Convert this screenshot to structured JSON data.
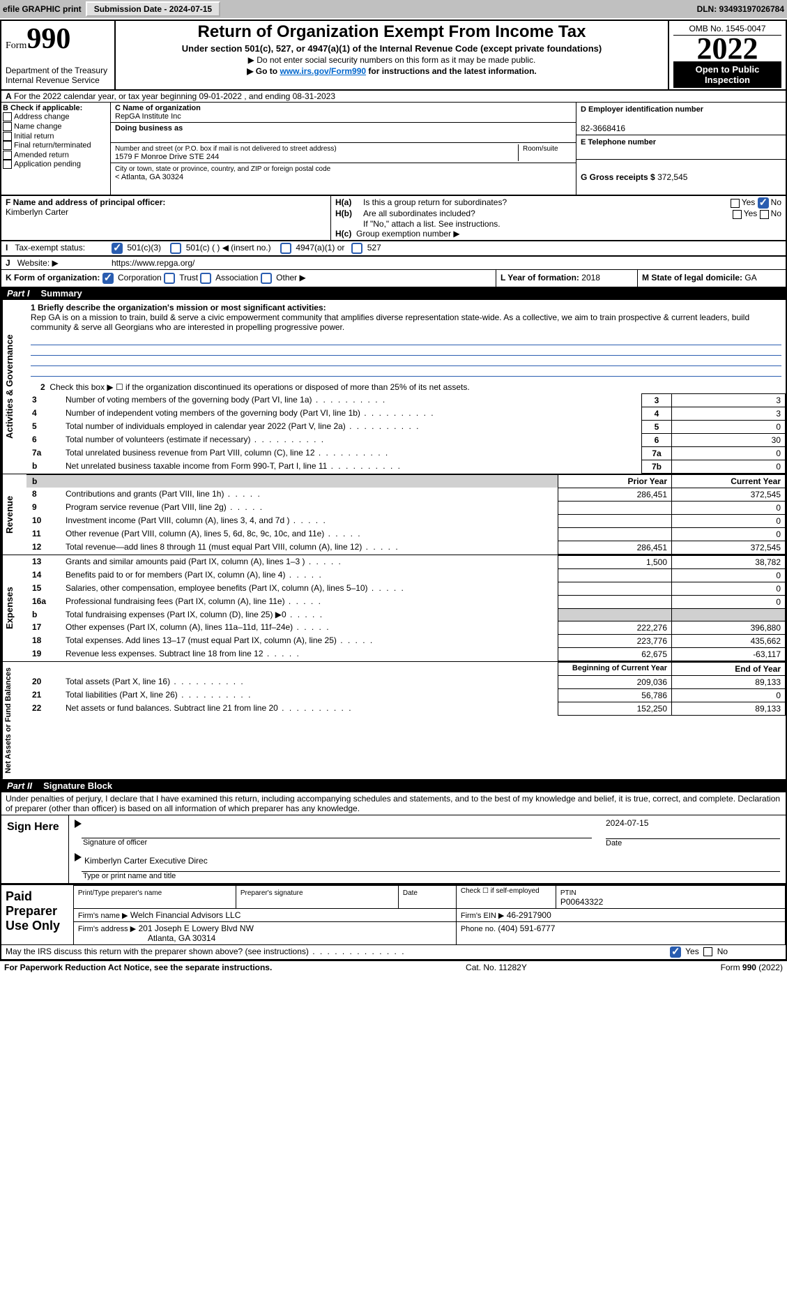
{
  "topbar": {
    "efile": "efile GRAPHIC print",
    "submission_label": "Submission Date - 2024-07-15",
    "dln": "DLN: 93493197026784"
  },
  "header": {
    "form_small": "Form",
    "form_num": "990",
    "dept": "Department of the Treasury",
    "irs": "Internal Revenue Service",
    "title": "Return of Organization Exempt From Income Tax",
    "sub1": "Under section 501(c), 527, or 4947(a)(1) of the Internal Revenue Code (except private foundations)",
    "sub2": "▶ Do not enter social security numbers on this form as it may be made public.",
    "sub3_pre": "▶ Go to ",
    "sub3_link": "www.irs.gov/Form990",
    "sub3_post": " for instructions and the latest information.",
    "omb": "OMB No. 1545-0047",
    "year": "2022",
    "opi": "Open to Public Inspection"
  },
  "A": {
    "line": "For the 2022 calendar year, or tax year beginning 09-01-2022    , and ending 08-31-2023"
  },
  "B": {
    "title": "B Check if applicable:",
    "opts": [
      "Address change",
      "Name change",
      "Initial return",
      "Final return/terminated",
      "Amended return",
      "Application pending"
    ]
  },
  "C": {
    "name_lbl": "C Name of organization",
    "name": "RepGA Institute Inc",
    "dba_lbl": "Doing business as",
    "dba": "",
    "addr_lbl": "Number and street (or P.O. box if mail is not delivered to street address)",
    "room_lbl": "Room/suite",
    "addr": "1579 F Monroe Drive STE 244",
    "city_lbl": "City or town, state or province, country, and ZIP or foreign postal code",
    "city": "Atlanta, GA  30324"
  },
  "D": {
    "lbl": "D Employer identification number",
    "val": "82-3668416"
  },
  "E": {
    "lbl": "E Telephone number",
    "val": ""
  },
  "G": {
    "lbl": "G Gross receipts $",
    "val": "372,545"
  },
  "F": {
    "lbl": "F  Name and address of principal officer:",
    "val": "Kimberlyn Carter"
  },
  "H": {
    "a": "Is this a group return for subordinates?",
    "a_ans": "No",
    "b": "Are all subordinates included?",
    "b_note": "If \"No,\" attach a list. See instructions.",
    "c": "Group exemption number ▶"
  },
  "I": {
    "lbl": "Tax-exempt status:",
    "o1": "501(c)(3)",
    "o2": "501(c) (  ) ◀ (insert no.)",
    "o3": "4947(a)(1) or",
    "o4": "527"
  },
  "J": {
    "lbl": "Website: ▶",
    "val": "https://www.repga.org/"
  },
  "K": {
    "lbl": "K Form of organization:",
    "o1": "Corporation",
    "o2": "Trust",
    "o3": "Association",
    "o4": "Other ▶"
  },
  "L": {
    "lbl": "L Year of formation:",
    "val": "2018"
  },
  "M": {
    "lbl": "M State of legal domicile:",
    "val": "GA"
  },
  "part1": {
    "label": "Part I",
    "title": "Summary"
  },
  "summary": {
    "side1": "Activities & Governance",
    "q1_lbl": "1 Briefly describe the organization's mission or most significant activities:",
    "q1_txt": "Rep GA is on a mission to train, build & serve a civic empowerment community that amplifies diverse representation state-wide. As a collective, we aim to train prospective & current leaders, build community & serve all Georgians who are interested in propelling progressive power.",
    "q2": "Check this box ▶ ☐  if the organization discontinued its operations or disposed of more than 25% of its net assets.",
    "rows_ag": [
      {
        "n": "3",
        "d": "Number of voting members of the governing body (Part VI, line 1a)",
        "ln": "3",
        "v": "3"
      },
      {
        "n": "4",
        "d": "Number of independent voting members of the governing body (Part VI, line 1b)",
        "ln": "4",
        "v": "3"
      },
      {
        "n": "5",
        "d": "Total number of individuals employed in calendar year 2022 (Part V, line 2a)",
        "ln": "5",
        "v": "0"
      },
      {
        "n": "6",
        "d": "Total number of volunteers (estimate if necessary)",
        "ln": "6",
        "v": "30"
      },
      {
        "n": "7a",
        "d": "Total unrelated business revenue from Part VIII, column (C), line 12",
        "ln": "7a",
        "v": "0"
      },
      {
        "n": "b",
        "d": "Net unrelated business taxable income from Form 990-T, Part I, line 11",
        "ln": "7b",
        "v": "0"
      }
    ],
    "side2": "Revenue",
    "col1": "Prior Year",
    "col2": "Current Year",
    "rows_rev": [
      {
        "n": "8",
        "d": "Contributions and grants (Part VIII, line 1h)",
        "p": "286,451",
        "c": "372,545"
      },
      {
        "n": "9",
        "d": "Program service revenue (Part VIII, line 2g)",
        "p": "",
        "c": "0"
      },
      {
        "n": "10",
        "d": "Investment income (Part VIII, column (A), lines 3, 4, and 7d )",
        "p": "",
        "c": "0"
      },
      {
        "n": "11",
        "d": "Other revenue (Part VIII, column (A), lines 5, 6d, 8c, 9c, 10c, and 11e)",
        "p": "",
        "c": "0"
      },
      {
        "n": "12",
        "d": "Total revenue—add lines 8 through 11 (must equal Part VIII, column (A), line 12)",
        "p": "286,451",
        "c": "372,545"
      }
    ],
    "side3": "Expenses",
    "rows_exp": [
      {
        "n": "13",
        "d": "Grants and similar amounts paid (Part IX, column (A), lines 1–3 )",
        "p": "1,500",
        "c": "38,782"
      },
      {
        "n": "14",
        "d": "Benefits paid to or for members (Part IX, column (A), line 4)",
        "p": "",
        "c": "0"
      },
      {
        "n": "15",
        "d": "Salaries, other compensation, employee benefits (Part IX, column (A), lines 5–10)",
        "p": "",
        "c": "0"
      },
      {
        "n": "16a",
        "d": "Professional fundraising fees (Part IX, column (A), line 11e)",
        "p": "",
        "c": "0"
      },
      {
        "n": "b",
        "d": "Total fundraising expenses (Part IX, column (D), line 25) ▶0",
        "p": "—",
        "c": "—"
      },
      {
        "n": "17",
        "d": "Other expenses (Part IX, column (A), lines 11a–11d, 11f–24e)",
        "p": "222,276",
        "c": "396,880"
      },
      {
        "n": "18",
        "d": "Total expenses. Add lines 13–17 (must equal Part IX, column (A), line 25)",
        "p": "223,776",
        "c": "435,662"
      },
      {
        "n": "19",
        "d": "Revenue less expenses. Subtract line 18 from line 12",
        "p": "62,675",
        "c": "-63,117"
      }
    ],
    "side4": "Net Assets or Fund Balances",
    "col1b": "Beginning of Current Year",
    "col2b": "End of Year",
    "rows_na": [
      {
        "n": "20",
        "d": "Total assets (Part X, line 16)",
        "p": "209,036",
        "c": "89,133"
      },
      {
        "n": "21",
        "d": "Total liabilities (Part X, line 26)",
        "p": "56,786",
        "c": "0"
      },
      {
        "n": "22",
        "d": "Net assets or fund balances. Subtract line 21 from line 20",
        "p": "152,250",
        "c": "89,133"
      }
    ]
  },
  "part2": {
    "label": "Part II",
    "title": "Signature Block"
  },
  "sig": {
    "decl": "Under penalties of perjury, I declare that I have examined this return, including accompanying schedules and statements, and to the best of my knowledge and belief, it is true, correct, and complete. Declaration of preparer (other than officer) is based on all information of which preparer has any knowledge.",
    "sign_here": "Sign Here",
    "sig_of": "Signature of officer",
    "date": "Date",
    "date_val": "2024-07-15",
    "name_title": "Kimberlyn Carter  Executive Direc",
    "name_lbl": "Type or print name and title",
    "paid": "Paid Preparer Use Only",
    "pt_name": "Print/Type preparer's name",
    "pt_sig": "Preparer's signature",
    "pt_date": "Date",
    "check_if": "Check ☐ if self-employed",
    "ptin_lbl": "PTIN",
    "ptin": "P00643322",
    "firm_name_lbl": "Firm's name    ▶",
    "firm_name": "Welch Financial Advisors LLC",
    "firm_ein_lbl": "Firm's EIN ▶",
    "firm_ein": "46-2917900",
    "firm_addr_lbl": "Firm's address ▶",
    "firm_addr": "201 Joseph E Lowery Blvd NW",
    "firm_city": "Atlanta, GA  30314",
    "phone_lbl": "Phone no.",
    "phone": "(404) 591-6777",
    "may": "May the IRS discuss this return with the preparer shown above? (see instructions)",
    "may_ans": "Yes"
  },
  "footer": {
    "l": "For Paperwork Reduction Act Notice, see the separate instructions.",
    "c": "Cat. No. 11282Y",
    "r": "Form 990 (2022)"
  }
}
